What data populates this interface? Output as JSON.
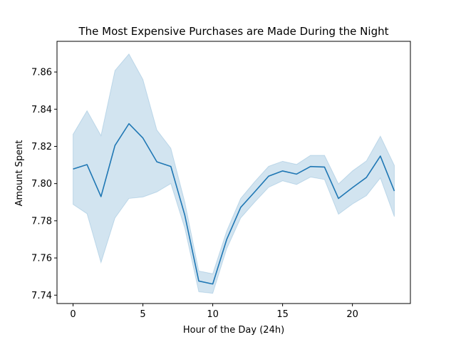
{
  "chart_data": {
    "type": "line",
    "title": "The Most Expensive Purchases are Made During the Night",
    "xlabel": "Hour of the Day (24h)",
    "ylabel": "Amount Spent",
    "x": [
      0,
      1,
      2,
      3,
      4,
      5,
      6,
      7,
      8,
      9,
      10,
      11,
      12,
      13,
      14,
      15,
      16,
      17,
      18,
      19,
      20,
      21,
      22,
      23
    ],
    "series": [
      {
        "values": [
          7.8078,
          7.8102,
          7.793,
          7.8205,
          7.8322,
          7.8245,
          7.8117,
          7.8092,
          7.783,
          7.7476,
          7.746,
          7.77,
          7.7872,
          7.7955,
          7.804,
          7.8068,
          7.8051,
          7.8092,
          7.8089,
          7.792,
          7.7978,
          7.8033,
          7.8148,
          7.796
        ],
        "ci_lower": [
          7.7888,
          7.7838,
          7.7575,
          7.7815,
          7.792,
          7.7928,
          7.7955,
          7.8,
          7.776,
          7.7418,
          7.741,
          7.765,
          7.7815,
          7.79,
          7.798,
          7.8015,
          7.7995,
          7.8035,
          7.8022,
          7.7835,
          7.789,
          7.7935,
          7.803,
          7.7822
        ],
        "ci_upper": [
          7.8265,
          7.8392,
          7.8258,
          7.8608,
          7.8697,
          7.856,
          7.8288,
          7.819,
          7.79,
          7.753,
          7.7515,
          7.7745,
          7.792,
          7.801,
          7.8093,
          7.812,
          7.8103,
          7.8152,
          7.8152,
          7.7998,
          7.8068,
          7.8122,
          7.8255,
          7.8098
        ],
        "color": "#1f77b4",
        "band_color": "#1f77b4"
      }
    ],
    "xlim": [
      -1.15,
      24.15
    ],
    "ylim": [
      7.7355,
      7.8765
    ],
    "xticks": [
      0,
      5,
      10,
      15,
      20
    ],
    "xtick_labels": [
      "0",
      "5",
      "10",
      "15",
      "20"
    ],
    "yticks": [
      7.74,
      7.76,
      7.78,
      7.8,
      7.82,
      7.84,
      7.86
    ],
    "ytick_labels": [
      "7.74",
      "7.76",
      "7.78",
      "7.80",
      "7.82",
      "7.84",
      "7.86"
    ],
    "grid": false,
    "legend": "none"
  }
}
